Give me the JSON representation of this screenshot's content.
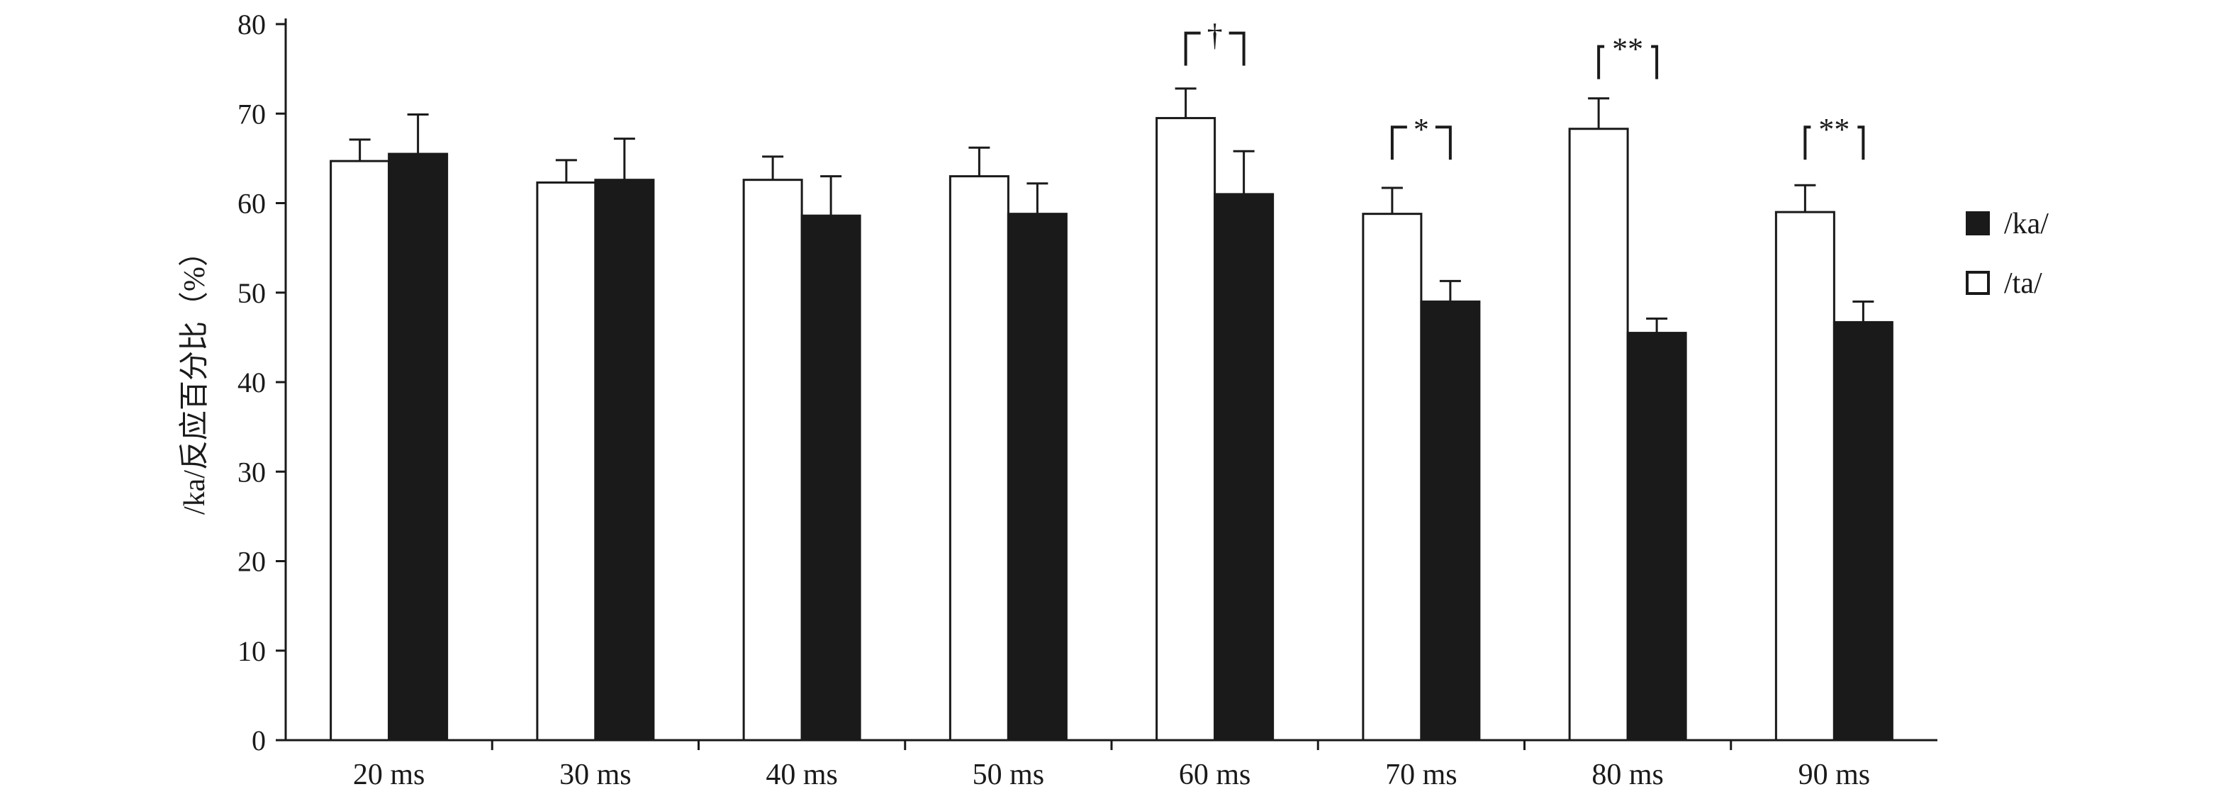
{
  "chart_data": {
    "type": "bar",
    "ylabel": "/ka/反应百分比（%）",
    "ylim": [
      0,
      80
    ],
    "yticks": [
      0,
      10,
      20,
      30,
      40,
      50,
      60,
      70,
      80
    ],
    "grid": false,
    "legend_position": "right",
    "categories": [
      "20 ms",
      "30 ms",
      "40 ms",
      "50 ms",
      "60 ms",
      "70 ms",
      "80 ms",
      "90 ms"
    ],
    "series": [
      {
        "name": "/ta/",
        "color": "#ffffff",
        "values": [
          64.7,
          62.3,
          62.6,
          63.0,
          69.5,
          58.8,
          68.3,
          59.0
        ],
        "error": [
          2.4,
          2.5,
          2.6,
          3.2,
          3.3,
          2.9,
          3.4,
          3.0
        ]
      },
      {
        "name": "/ka/",
        "color": "#1a1a1a",
        "values": [
          65.5,
          62.6,
          58.6,
          58.8,
          61.0,
          49.0,
          45.5,
          46.7
        ],
        "error": [
          4.4,
          4.6,
          4.4,
          3.4,
          4.8,
          2.3,
          1.6,
          2.3
        ]
      }
    ],
    "legend_order": [
      "/ka/",
      "/ta/"
    ],
    "annotations": [
      {
        "category": "60 ms",
        "label": "†",
        "y": 79.0
      },
      {
        "category": "70 ms",
        "label": "*",
        "y": 68.5
      },
      {
        "category": "80 ms",
        "label": "**",
        "y": 77.5
      },
      {
        "category": "90 ms",
        "label": "**",
        "y": 68.5
      }
    ]
  }
}
